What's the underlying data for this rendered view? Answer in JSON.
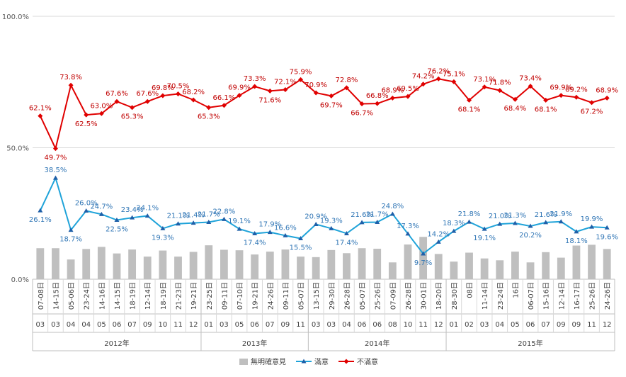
{
  "chart_data": {
    "type": "line",
    "title": "",
    "xlabel": "",
    "ylabel": "",
    "ylim": [
      0,
      100
    ],
    "yticks": [
      "0.0%",
      "50.0%",
      "100.0%"
    ],
    "grid": true,
    "legend_position": "bottom",
    "categories": [
      {
        "dates": "07-08日",
        "month": "03"
      },
      {
        "dates": "14-15日",
        "month": "03"
      },
      {
        "dates": "05-06日",
        "month": "04"
      },
      {
        "dates": "23-24日",
        "month": "04"
      },
      {
        "dates": "14-16日",
        "month": "05"
      },
      {
        "dates": "14-15日",
        "month": "06"
      },
      {
        "dates": "18-19日",
        "month": "07"
      },
      {
        "dates": "12-14日",
        "month": "09"
      },
      {
        "dates": "18-19日",
        "month": "10"
      },
      {
        "dates": "21-23日",
        "month": "11"
      },
      {
        "dates": "19-21日",
        "month": "12"
      },
      {
        "dates": "23-25日",
        "month": "01"
      },
      {
        "dates": "09-11日",
        "month": "03"
      },
      {
        "dates": "07-10日",
        "month": "05"
      },
      {
        "dates": "19-21日",
        "month": "06"
      },
      {
        "dates": "24-26日",
        "month": "07"
      },
      {
        "dates": "09-11日",
        "month": "09"
      },
      {
        "dates": "05-07日",
        "month": "11"
      },
      {
        "dates": "13-15日",
        "month": "03"
      },
      {
        "dates": "29-30日",
        "month": "03"
      },
      {
        "dates": "26-28日",
        "month": "04"
      },
      {
        "dates": "05-07日",
        "month": "06"
      },
      {
        "dates": "25-26日",
        "month": "06"
      },
      {
        "dates": "07-09日",
        "month": "08"
      },
      {
        "dates": "26-28日",
        "month": "10"
      },
      {
        "dates": "30-01日",
        "month": "11"
      },
      {
        "dates": "18-20日",
        "month": "12"
      },
      {
        "dates": "28-30日",
        "month": "01"
      },
      {
        "dates": "08日",
        "month": "02"
      },
      {
        "dates": "11-14日",
        "month": "03"
      },
      {
        "dates": "23-24日",
        "month": "04"
      },
      {
        "dates": "16日",
        "month": "05"
      },
      {
        "dates": "06-07日",
        "month": "06"
      },
      {
        "dates": "15-16日",
        "month": "07"
      },
      {
        "dates": "12-14日",
        "month": "09"
      },
      {
        "dates": "16-17日",
        "month": "09"
      },
      {
        "dates": "25-26日",
        "month": "11"
      },
      {
        "dates": "24-26日",
        "month": "12"
      }
    ],
    "years": [
      {
        "label": "2012年",
        "start": 0,
        "end": 10
      },
      {
        "label": "2013年",
        "start": 11,
        "end": 17
      },
      {
        "label": "2014年",
        "start": 18,
        "end": 26
      },
      {
        "label": "2015年",
        "start": 27,
        "end": 37
      }
    ],
    "series": [
      {
        "name": "無明確意見",
        "kind": "bar",
        "color": "#bfbfbf",
        "show_labels": false,
        "values": [
          11.8,
          11.8,
          7.5,
          11.5,
          12.3,
          9.8,
          11.3,
          8.6,
          10.9,
          8.6,
          10.4,
          12.9,
          11.2,
          11.0,
          9.4,
          10.5,
          11.3,
          8.6,
          8.4,
          11.1,
          9.9,
          11.8,
          11.6,
          6.4,
          13.2,
          16.1,
          9.6,
          6.7,
          10.1,
          7.9,
          7.2,
          10.5,
          6.4,
          10.3,
          8.2,
          12.8,
          13.1,
          11.5
        ]
      },
      {
        "name": "滿意",
        "kind": "line",
        "color": "#1fa3d9",
        "marker": "triangle",
        "show_labels": true,
        "values": [
          26.1,
          38.5,
          18.7,
          26.0,
          24.7,
          22.5,
          23.4,
          24.1,
          19.3,
          21.1,
          21.4,
          21.7,
          22.8,
          19.1,
          17.4,
          17.9,
          16.6,
          15.5,
          20.9,
          19.3,
          17.4,
          21.6,
          21.7,
          24.8,
          17.3,
          9.7,
          14.2,
          18.3,
          21.8,
          19.1,
          21.0,
          21.3,
          20.2,
          21.6,
          21.9,
          18.1,
          19.9,
          19.6
        ]
      },
      {
        "name": "不滿意",
        "kind": "line",
        "color": "#e00000",
        "marker": "diamond",
        "show_labels": true,
        "values": [
          62.1,
          49.7,
          73.8,
          62.5,
          63.0,
          67.6,
          65.3,
          67.6,
          69.8,
          70.5,
          68.2,
          65.3,
          66.1,
          69.9,
          73.3,
          71.6,
          72.1,
          75.9,
          70.9,
          69.7,
          72.8,
          66.7,
          66.8,
          68.9,
          69.5,
          74.2,
          76.2,
          75.1,
          68.1,
          73.1,
          71.8,
          68.4,
          73.4,
          68.1,
          69.9,
          69.2,
          67.2,
          68.9
        ]
      }
    ]
  }
}
